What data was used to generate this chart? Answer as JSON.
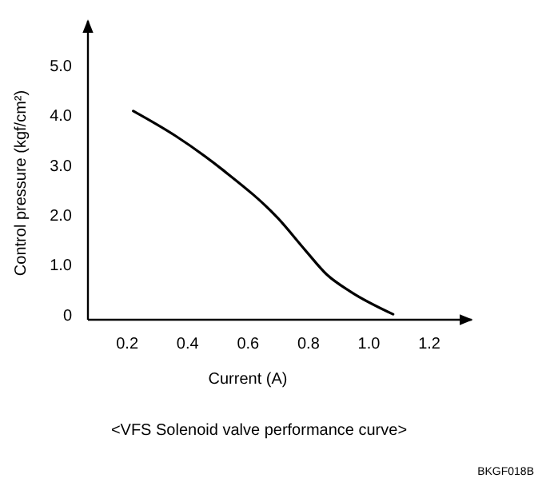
{
  "chart_data": {
    "type": "line",
    "title": "<VFS Solenoid valve performance curve>",
    "xlabel": "Current  (A)",
    "ylabel": "Control pressure  (kgf/cm²)",
    "x": [
      0.22,
      0.36,
      0.52,
      0.7,
      0.79,
      0.86,
      0.94,
      1.08
    ],
    "series": [
      {
        "color": "#000000",
        "values": [
          4.09,
          3.59,
          2.89,
          1.93,
          1.29,
          0.81,
          0.46,
          0.01
        ]
      }
    ],
    "xlim": [
      0.07,
      1.34
    ],
    "ylim": [
      -0.1,
      5.9
    ],
    "xticks": [
      {
        "value": 0.2,
        "label": "0.2"
      },
      {
        "value": 0.4,
        "label": "0.4"
      },
      {
        "value": 0.6,
        "label": "0.6"
      },
      {
        "value": 0.8,
        "label": "0.8"
      },
      {
        "value": 1.0,
        "label": "1.0"
      },
      {
        "value": 1.2,
        "label": "1.2"
      }
    ],
    "yticks": [
      {
        "value": 0,
        "label": "0"
      },
      {
        "value": 1,
        "label": "1.0"
      },
      {
        "value": 2,
        "label": "2.0"
      },
      {
        "value": 3,
        "label": "3.0"
      },
      {
        "value": 4,
        "label": "4.0"
      },
      {
        "value": 5,
        "label": "5.0"
      }
    ],
    "grid": false,
    "marker": "none",
    "line_style": "solid",
    "annotations": [
      "BKGF018B"
    ]
  }
}
